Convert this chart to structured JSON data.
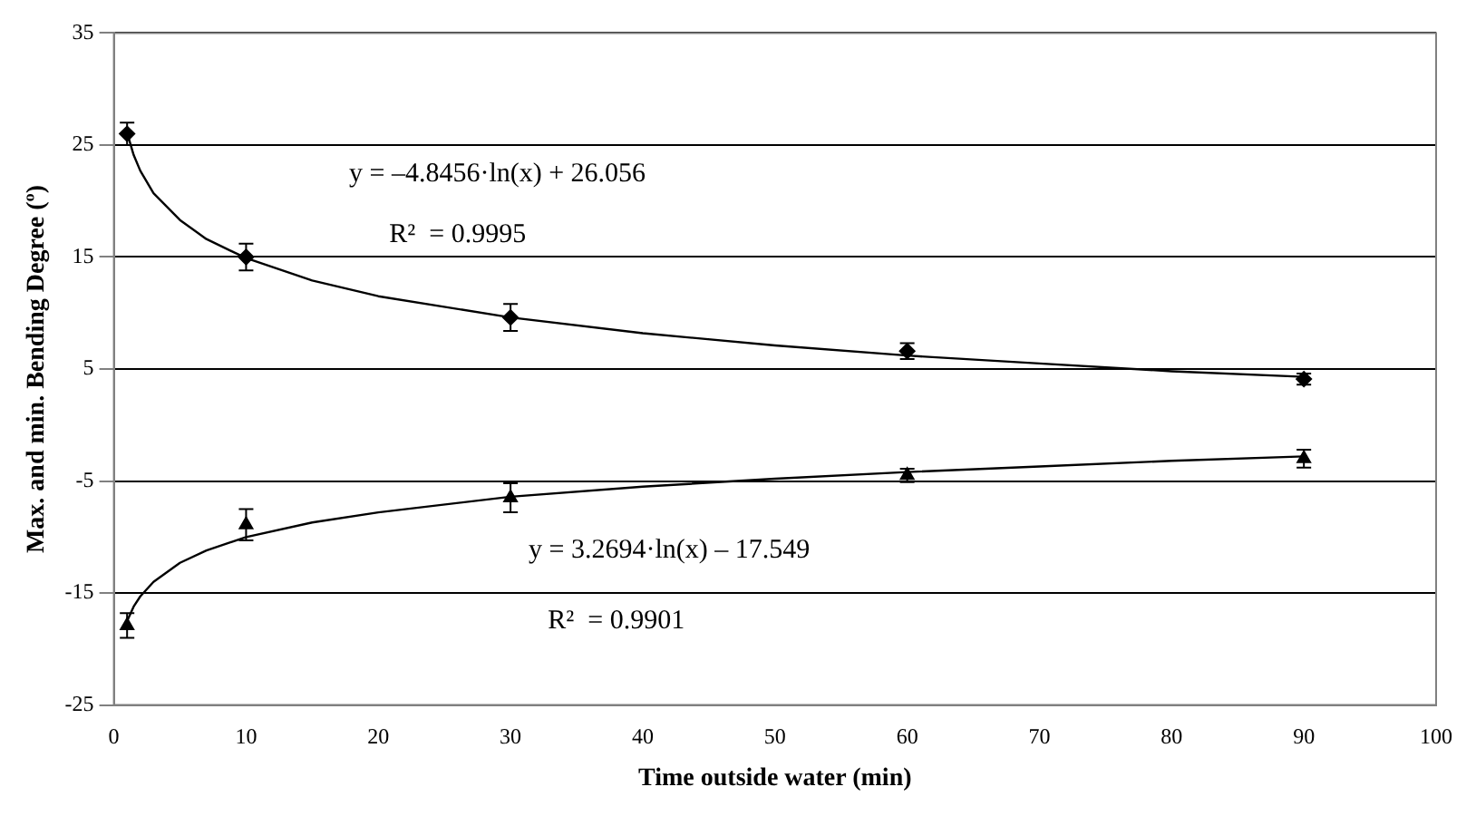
{
  "chart_data": {
    "type": "scatter",
    "xlabel": "Time outside water (min)",
    "ylabel": "Max. and min. Bending Degree (º)",
    "xlim": [
      0,
      100
    ],
    "xticks": [
      0,
      10,
      20,
      30,
      40,
      50,
      60,
      70,
      80,
      90,
      100
    ],
    "ylim": [
      -25,
      35
    ],
    "yticks": [
      -25,
      -15,
      -5,
      5,
      15,
      25,
      35
    ],
    "grid": "y",
    "legend": false,
    "series": [
      {
        "color": "#000000",
        "marker": "diamond",
        "x": [
          1,
          10,
          30,
          60,
          90
        ],
        "values": [
          26.0,
          15.0,
          9.6,
          6.6,
          4.1
        ],
        "errors": [
          1.0,
          1.2,
          1.2,
          0.7,
          0.5
        ]
      },
      {
        "color": "#000000",
        "marker": "triangle",
        "x": [
          1,
          10,
          30,
          60,
          90
        ],
        "values": [
          -17.9,
          -8.9,
          -6.5,
          -4.5,
          -3.0
        ],
        "errors": [
          1.1,
          1.4,
          1.3,
          0.6,
          0.8
        ]
      },
      {
        "type": "line",
        "color": "#000000",
        "marker": "none",
        "line_style": "solid",
        "x": [
          1,
          1.5,
          2,
          3,
          5,
          7,
          10,
          15,
          20,
          30,
          40,
          50,
          60,
          70,
          80,
          90
        ],
        "values": [
          26.1,
          24.1,
          22.7,
          20.7,
          18.3,
          16.6,
          14.9,
          12.9,
          11.5,
          9.6,
          8.2,
          7.1,
          6.2,
          5.5,
          4.8,
          4.3
        ]
      },
      {
        "type": "line",
        "color": "#000000",
        "marker": "none",
        "line_style": "solid",
        "x": [
          1,
          1.5,
          2,
          3,
          5,
          7,
          10,
          15,
          20,
          30,
          40,
          50,
          60,
          70,
          80,
          90
        ],
        "values": [
          -17.5,
          -16.2,
          -15.3,
          -14.0,
          -12.3,
          -11.2,
          -10.0,
          -8.7,
          -7.8,
          -6.4,
          -5.5,
          -4.8,
          -4.2,
          -3.7,
          -3.2,
          -2.8
        ]
      }
    ],
    "annotations": [
      "y = –4.8456·ln(x) + 26.056",
      "R²  = 0.9995",
      "y = 3.2694·ln(x) – 17.549",
      "R²  = 0.9901"
    ]
  }
}
